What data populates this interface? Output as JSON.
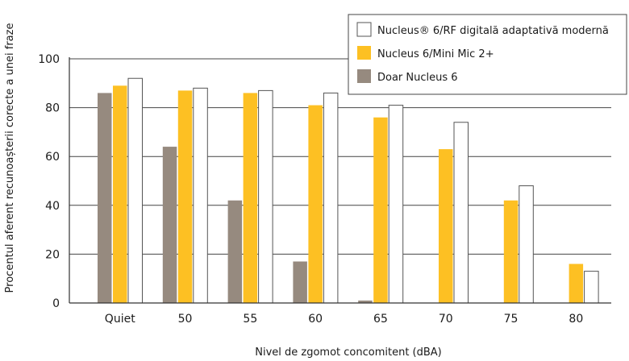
{
  "chart_data": {
    "type": "bar",
    "categories": [
      "Quiet",
      "50",
      "55",
      "60",
      "65",
      "70",
      "75",
      "80"
    ],
    "series": [
      {
        "name": "Doar Nucleus 6",
        "color": "#968a7f",
        "values": [
          86,
          64,
          42,
          17,
          1,
          null,
          null,
          null
        ]
      },
      {
        "name": "Nucleus 6/Mini Mic 2+",
        "color": "#fdc023",
        "values": [
          89,
          87,
          86,
          81,
          76,
          63,
          42,
          16
        ]
      },
      {
        "name": "Nucleus® 6/RF digitală adaptativă modernă",
        "color": "#ffffff",
        "values": [
          92,
          88,
          87,
          86,
          81,
          74,
          48,
          13
        ]
      }
    ],
    "xlabel": "Nivel de zgomot concomitent (dBA)",
    "ylabel": "Procentul aferent recunoașterii corecte a unei fraze",
    "ylim": [
      0,
      100
    ],
    "yticks": [
      0,
      20,
      40,
      60,
      80,
      100
    ],
    "grid": true,
    "legend_position": "top-right",
    "legend_order": [
      2,
      1,
      0
    ]
  }
}
